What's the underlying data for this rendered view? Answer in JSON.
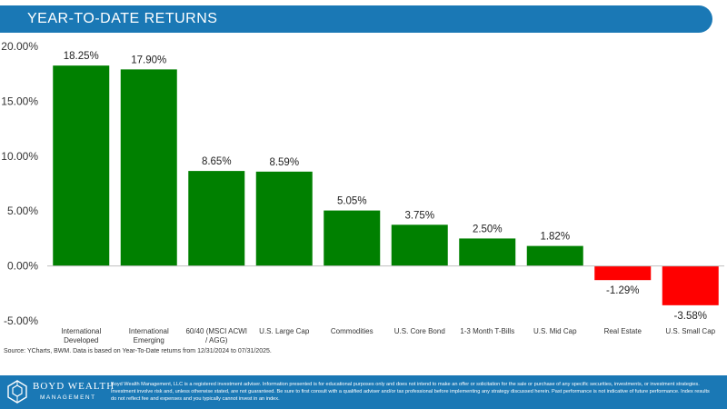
{
  "header": {
    "title": "YEAR-TO-DATE RETURNS"
  },
  "chart_data": {
    "type": "bar",
    "title": "",
    "xlabel": "",
    "ylabel": "",
    "ylim": [
      -5,
      20
    ],
    "yticks": [
      "20.00%",
      "15.00%",
      "10.00%",
      "5.00%",
      "0.00%",
      "-5.00%"
    ],
    "ytick_values": [
      20,
      15,
      10,
      5,
      0,
      -5
    ],
    "categories": [
      [
        "International",
        "Developed"
      ],
      [
        "International",
        "Emerging"
      ],
      [
        "60/40 (MSCI ACWI",
        "/ AGG)"
      ],
      [
        "U.S. Large Cap"
      ],
      [
        "Commodities"
      ],
      [
        "U.S. Core Bond"
      ],
      [
        "1-3 Month T-Bills"
      ],
      [
        "U.S. Mid Cap"
      ],
      [
        "Real Estate"
      ],
      [
        "U.S. Small Cap"
      ]
    ],
    "values": [
      18.25,
      17.9,
      8.65,
      8.59,
      5.05,
      3.75,
      2.5,
      1.82,
      -1.29,
      -3.58
    ],
    "value_labels": [
      "18.25%",
      "17.90%",
      "8.65%",
      "8.59%",
      "5.05%",
      "3.75%",
      "2.50%",
      "1.82%",
      "-1.29%",
      "-3.58%"
    ],
    "positive_color": "#008000",
    "negative_color": "#ff0000",
    "grid": false
  },
  "source": "Source: YCharts, BWM. Data is based on Year-To-Date returns from 12/31/2024 to 07/31/2025.",
  "footer": {
    "logo_name": "BOYD WEALTH",
    "logo_sub": "MANAGEMENT",
    "logo_icon": "diamond-cube-icon",
    "disclaimer": "Boyd Wealth Management, LLC is a registered investment adviser. Information presented is for educational purposes only and does not intend to make an offer or solicitation for the sale or purchase of any specific securities, investments, or investment strategies. Investment involve risk and, unless otherwise stated, are not guaranteed. Be sure to first consult with a qualified adviser and/or tax professional before implementing any strategy discussed herein. Past performance is not indicative of future performance. Index results do not reflect fee and expenses and you typically cannot invest in an index."
  },
  "colors": {
    "brand_blue": "#1a78b5"
  }
}
